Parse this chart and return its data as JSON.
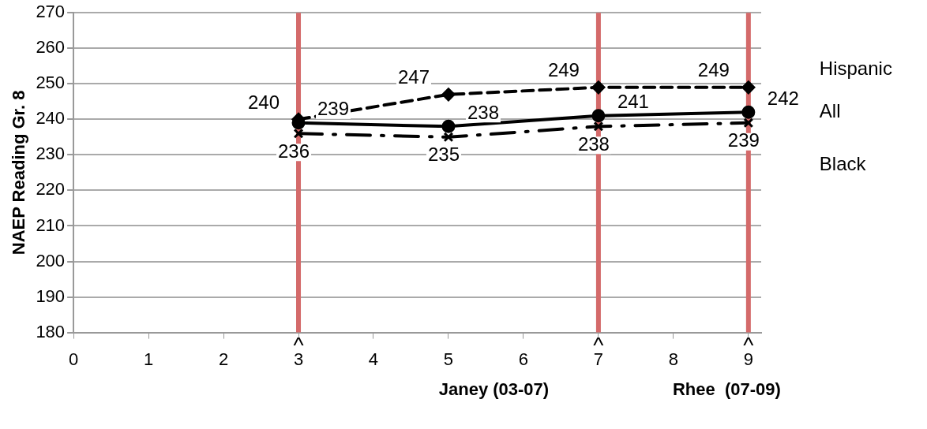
{
  "chart_data": {
    "type": "line",
    "ylabel": "NAEP Reading Gr. 8",
    "x": [
      3,
      5,
      7,
      9
    ],
    "series": [
      {
        "name": "Hispanic",
        "color": "#000000",
        "values": [
          240,
          247,
          249,
          249
        ],
        "line_style": "dashed",
        "marker": "diamond"
      },
      {
        "name": "All",
        "color": "#000000",
        "values": [
          239,
          238,
          241,
          242
        ],
        "line_style": "solid",
        "marker": "circle"
      },
      {
        "name": "Black",
        "color": "#000000",
        "values": [
          236,
          235,
          238,
          239
        ],
        "line_style": "dashdot",
        "marker": "cross"
      }
    ],
    "xlim": [
      0,
      9.17
    ],
    "xticks": [
      0,
      1,
      2,
      3,
      4,
      5,
      6,
      7,
      8,
      9
    ],
    "ylim": [
      180,
      270
    ],
    "yticks": [
      180,
      190,
      200,
      210,
      220,
      230,
      240,
      250,
      260,
      270
    ],
    "grid": "y",
    "legend": false,
    "data_labels": true,
    "ref_lines": [
      {
        "axis": "x",
        "value": 3,
        "color": "#d46a6a"
      },
      {
        "axis": "x",
        "value": 7,
        "color": "#d46a6a"
      },
      {
        "axis": "x",
        "value": 9,
        "color": "#d46a6a"
      }
    ],
    "annotations": [
      "^",
      "^",
      "^",
      "Janey (03-07)",
      "Rhee  (07-09)"
    ]
  }
}
